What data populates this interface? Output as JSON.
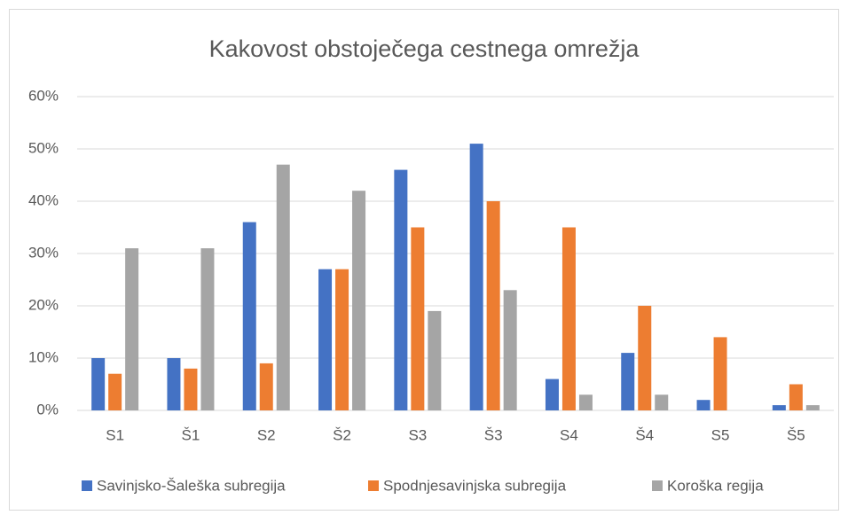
{
  "chart_data": {
    "type": "bar",
    "title": "Kakovost obstoječega cestnega omrežja",
    "categories": [
      "S1",
      "Š1",
      "S2",
      "Š2",
      "S3",
      "Š3",
      "S4",
      "Š4",
      "S5",
      "Š5"
    ],
    "series": [
      {
        "name": "Savinjsko-Šaleška subregija",
        "color": "#4472c4",
        "values": [
          10,
          10,
          36,
          27,
          46,
          51,
          6,
          11,
          2,
          1
        ]
      },
      {
        "name": "Spodnjesavinjska subregija",
        "color": "#ed7d31",
        "values": [
          7,
          8,
          9,
          27,
          35,
          40,
          35,
          20,
          14,
          5
        ]
      },
      {
        "name": "Koroška regija",
        "color": "#a5a5a5",
        "values": [
          31,
          31,
          47,
          42,
          19,
          23,
          3,
          3,
          0,
          1
        ]
      }
    ],
    "ylim": [
      0,
      60
    ],
    "yticks": [
      {
        "value": 0,
        "label": "0%"
      },
      {
        "value": 10,
        "label": "10%"
      },
      {
        "value": 20,
        "label": "20%"
      },
      {
        "value": 30,
        "label": "30%"
      },
      {
        "value": 40,
        "label": "40%"
      },
      {
        "value": 50,
        "label": "50%"
      },
      {
        "value": 60,
        "label": "60%"
      }
    ],
    "grid": true,
    "legend": "bottom"
  }
}
